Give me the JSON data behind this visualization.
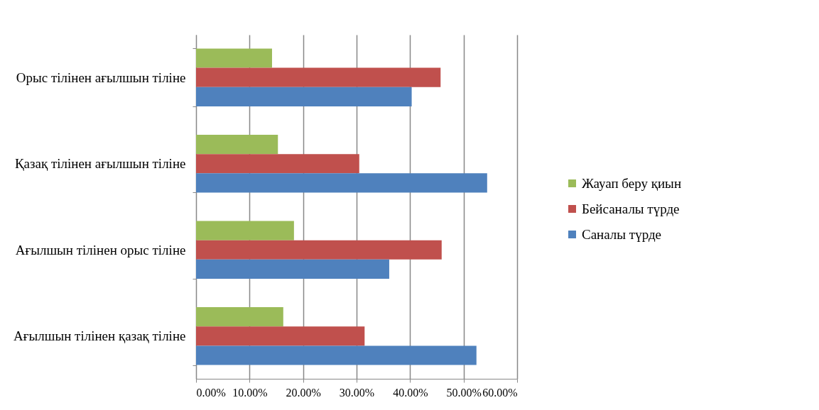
{
  "chart_data": {
    "type": "bar",
    "orientation": "horizontal",
    "categories": [
      "Орыс тілінен ағылшын тіліне",
      "Қазақ тілінен ағылшын тіліне",
      "Ағылшын тілінен орыс тіліне ",
      "Ағылшын тілінен қазақ тіліне"
    ],
    "series": [
      {
        "name": "Жауап беру қиын",
        "color": "#9bbb59",
        "values": [
          14.2,
          15.3,
          18.3,
          16.3
        ]
      },
      {
        "name": "Бейсаналы түрде",
        "color": "#c0504d",
        "values": [
          45.7,
          30.5,
          45.9,
          31.5
        ]
      },
      {
        "name": "Саналы түрде",
        "color": "#4f81bd",
        "values": [
          40.3,
          54.4,
          36.1,
          52.4
        ]
      }
    ],
    "xlim": [
      0,
      60
    ],
    "xticks": [
      {
        "value": 0,
        "label": "0.00%"
      },
      {
        "value": 10,
        "label": "10.00%"
      },
      {
        "value": 20,
        "label": "20.00%"
      },
      {
        "value": 30,
        "label": "30.00%"
      },
      {
        "value": 40,
        "label": "40.00%"
      },
      {
        "value": 50,
        "label": "50.00%"
      },
      {
        "value": 60,
        "label": "60.00%"
      }
    ],
    "grid": "x",
    "legend": "right"
  }
}
